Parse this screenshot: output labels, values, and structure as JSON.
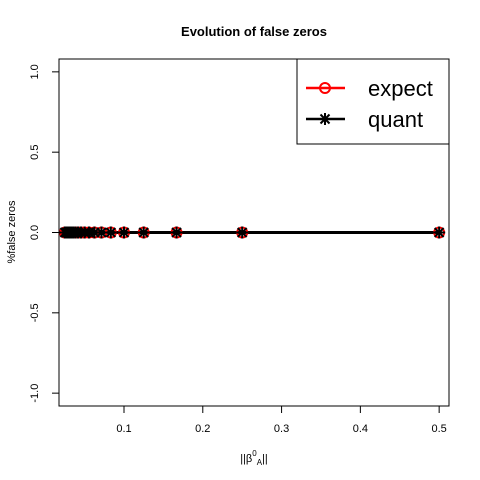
{
  "chart_data": {
    "type": "line",
    "title": "Evolution of false zeros",
    "ylabel": "%false zeros",
    "xlabel": {
      "base": "||β",
      "sup": "0",
      "sub": "A",
      "end": "||"
    },
    "xlim": [
      0.0175,
      0.5125
    ],
    "ylim": [
      -1.08,
      1.08
    ],
    "xticks": [
      0.1,
      0.2,
      0.3,
      0.4,
      0.5
    ],
    "xtick_labels": [
      "0.1",
      "0.2",
      "0.3",
      "0.4",
      "0.5"
    ],
    "yticks": [
      -1.0,
      -0.5,
      0.0,
      0.5,
      1.0
    ],
    "ytick_labels": [
      "-1.0",
      "-0.5",
      "0.0",
      "0.5",
      "1.0"
    ],
    "grid": false,
    "legend_position": "top-right",
    "x": [
      0.5,
      0.25,
      0.1667,
      0.125,
      0.1,
      0.0833,
      0.0714,
      0.0625,
      0.0556,
      0.05,
      0.0455,
      0.0417,
      0.0385,
      0.0357,
      0.0333,
      0.03125,
      0.0294,
      0.0278,
      0.0263,
      0.025
    ],
    "series": [
      {
        "name": "expect",
        "marker": "circle",
        "color": "#ff0000",
        "values": [
          0,
          0,
          0,
          0,
          0,
          0,
          0,
          0,
          0,
          0,
          0,
          0,
          0,
          0,
          0,
          0,
          0,
          0,
          0,
          0
        ]
      },
      {
        "name": "quant",
        "marker": "asterisk",
        "color": "#000000",
        "values": [
          0,
          0,
          0,
          0,
          0,
          0,
          0,
          0,
          0,
          0,
          0,
          0,
          0,
          0,
          0,
          0,
          0,
          0,
          0,
          0
        ]
      }
    ]
  }
}
